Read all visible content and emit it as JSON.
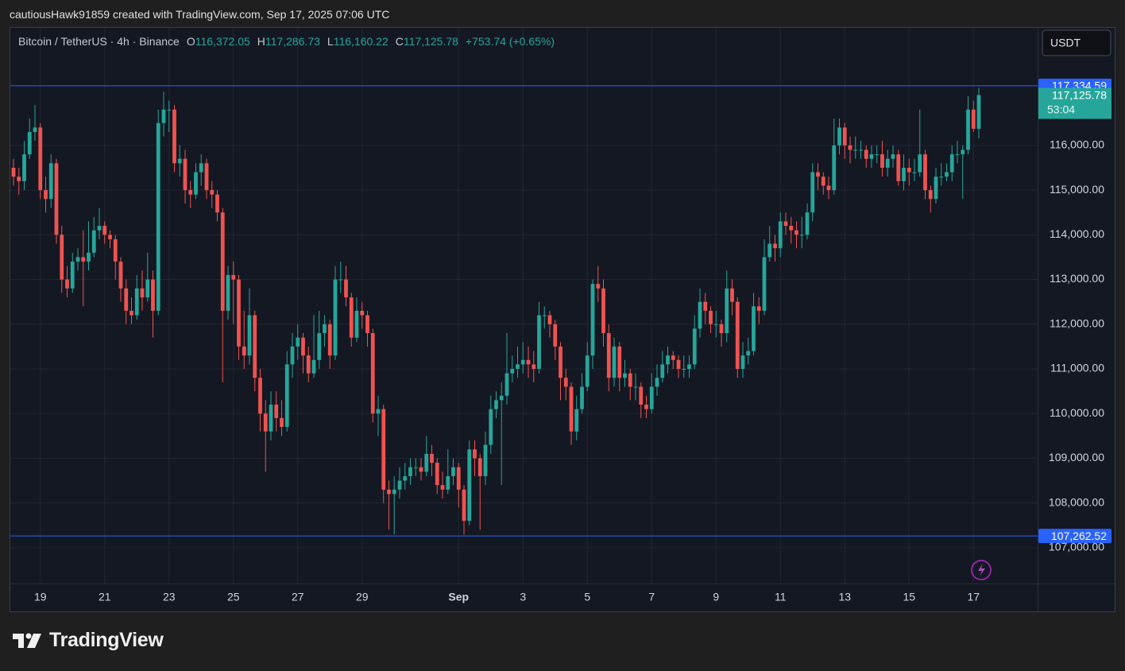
{
  "header": {
    "attribution": "cautiousHawk91859 created with TradingView.com, Sep 17, 2025 07:06 UTC"
  },
  "chart_data": {
    "type": "candlestick",
    "symbol": "Bitcoin / TetherUS · 4h · Binance",
    "ohlc_legend": [
      {
        "label": "O",
        "value": "116,372.05"
      },
      {
        "label": "H",
        "value": "117,286.73"
      },
      {
        "label": "L",
        "value": "116,160.22"
      },
      {
        "label": "C",
        "value": "117,125.78"
      }
    ],
    "change": "+753.74 (+0.65%)",
    "currency": "USDT",
    "up_color": "#26a69a",
    "down_color": "#ef5350",
    "categories": [
      null,
      null,
      null,
      null,
      null,
      "19",
      null,
      null,
      null,
      null,
      null,
      null,
      null,
      null,
      null,
      null,
      null,
      "21",
      null,
      null,
      null,
      null,
      null,
      null,
      null,
      null,
      null,
      null,
      null,
      "23",
      null,
      null,
      null,
      null,
      null,
      null,
      null,
      null,
      null,
      null,
      null,
      "25",
      null,
      null,
      null,
      null,
      null,
      null,
      null,
      null,
      null,
      null,
      null,
      "27",
      null,
      null,
      null,
      null,
      null,
      null,
      null,
      null,
      null,
      null,
      null,
      "29",
      null,
      null,
      null,
      null,
      null,
      null,
      null,
      null,
      null,
      null,
      null,
      null,
      null,
      null,
      null,
      null,
      null,
      "Sep",
      null,
      null,
      null,
      null,
      null,
      null,
      null,
      null,
      null,
      null,
      null,
      "3",
      null,
      null,
      null,
      null,
      null,
      null,
      null,
      null,
      null,
      null,
      null,
      "5",
      null,
      null,
      null,
      null,
      null,
      null,
      null,
      null,
      null,
      null,
      null,
      "7",
      null,
      null,
      null,
      null,
      null,
      null,
      null,
      null,
      null,
      null,
      null,
      "9",
      null,
      null,
      null,
      null,
      null,
      null,
      null,
      null,
      null,
      null,
      null,
      "11",
      null,
      null,
      null,
      null,
      null,
      null,
      null,
      null,
      null,
      null,
      null,
      "13",
      null,
      null,
      null,
      null,
      null,
      null,
      null,
      null,
      null,
      null,
      null,
      "15",
      null,
      null,
      null,
      null,
      null,
      null,
      null,
      null,
      null,
      null,
      null,
      "17",
      null
    ],
    "open": [
      115500,
      115300,
      115200,
      115800,
      116300,
      116400,
      115000,
      114800,
      115600,
      114000,
      113000,
      112800,
      113400,
      113500,
      113400,
      113600,
      114100,
      114200,
      114000,
      113900,
      113400,
      112800,
      112300,
      112200,
      112800,
      112600,
      113000,
      112300,
      116500,
      116800,
      116800,
      115600,
      115700,
      115000,
      114900,
      115400,
      115600,
      115000,
      114900,
      114500,
      112300,
      113100,
      113000,
      111500,
      111300,
      112200,
      110800,
      110000,
      109600,
      110200,
      109900,
      109700,
      111100,
      111500,
      111700,
      111300,
      110900,
      111200,
      111800,
      112000,
      111300,
      113000,
      113000,
      112600,
      111700,
      112300,
      112200,
      111800,
      110000,
      110100,
      108300,
      108200,
      108300,
      108500,
      108600,
      108800,
      108800,
      108700,
      109100,
      108900,
      108400,
      108300,
      108600,
      108800,
      108300,
      107600,
      109200,
      109000,
      108600,
      109300,
      110100,
      110300,
      110400,
      110900,
      111000,
      111100,
      111200,
      111100,
      111000,
      112200,
      112200,
      112000,
      111500,
      110800,
      110600,
      109600,
      110100,
      110600,
      111300,
      112900,
      112800,
      111800,
      110800,
      111500,
      110800,
      110900,
      110600,
      110600,
      110200,
      110100,
      110600,
      110800,
      111100,
      111300,
      111200,
      111000,
      111000,
      111100,
      111900,
      112500,
      112300,
      112000,
      112000,
      111800,
      112800,
      112500,
      111000,
      111300,
      111400,
      112400,
      112300,
      113500,
      113800,
      113700,
      114300,
      114200,
      114100,
      114000,
      114000,
      114500,
      115400,
      115300,
      115100,
      115000,
      116000,
      116400,
      116000,
      115900,
      115900,
      115900,
      115700,
      115800,
      115800,
      115500,
      115700,
      115800,
      115200,
      115500,
      115400,
      115400,
      115800,
      115000,
      114800,
      115300,
      115300,
      115400,
      115800,
      115800,
      115900,
      116800,
      116372.05
    ],
    "high": [
      115700,
      115500,
      116100,
      116600,
      116900,
      116500,
      115300,
      115800,
      115700,
      114200,
      113300,
      113600,
      113700,
      114100,
      114300,
      114400,
      114600,
      114300,
      114100,
      114000,
      113500,
      113000,
      112600,
      113100,
      113200,
      113600,
      113200,
      116800,
      117200,
      117000,
      116900,
      116000,
      115900,
      115200,
      115600,
      115800,
      115700,
      115200,
      115000,
      114600,
      113300,
      113400,
      113100,
      112300,
      112800,
      112300,
      111000,
      110300,
      110500,
      110500,
      110300,
      111400,
      111800,
      112000,
      111800,
      111500,
      112200,
      112300,
      112200,
      112100,
      113300,
      113400,
      113300,
      112700,
      112600,
      112500,
      112300,
      111900,
      110400,
      110200,
      108500,
      108600,
      108800,
      108900,
      109000,
      109000,
      109000,
      109500,
      109300,
      109000,
      108700,
      109200,
      109000,
      108900,
      108400,
      109400,
      109400,
      109100,
      109600,
      110400,
      110500,
      110700,
      111800,
      111300,
      111500,
      111600,
      111500,
      111400,
      112500,
      112400,
      112300,
      112100,
      111600,
      111000,
      110700,
      110400,
      110900,
      111600,
      113000,
      113300,
      113000,
      112000,
      111700,
      111600,
      111200,
      111000,
      110900,
      110700,
      110400,
      110900,
      111100,
      111400,
      111500,
      111400,
      111300,
      111300,
      111300,
      112200,
      112800,
      112700,
      112400,
      112300,
      112100,
      113200,
      113000,
      112600,
      111600,
      111700,
      112700,
      112600,
      113900,
      114200,
      114000,
      114500,
      114500,
      114400,
      114300,
      114400,
      114700,
      115600,
      115600,
      115400,
      115300,
      116600,
      116600,
      116500,
      116200,
      116200,
      116100,
      116000,
      116000,
      116000,
      116100,
      115900,
      116000,
      115900,
      115800,
      115700,
      115700,
      116800,
      115900,
      115100,
      115500,
      115600,
      115600,
      116000,
      116100,
      116000,
      117100,
      117000,
      117286.73
    ],
    "low": [
      115100,
      114900,
      115000,
      115700,
      116100,
      114800,
      114500,
      114600,
      113800,
      112700,
      112600,
      112700,
      113200,
      112400,
      113200,
      113500,
      113900,
      113800,
      113700,
      113000,
      112500,
      112000,
      112000,
      112100,
      112300,
      112500,
      111700,
      112200,
      116200,
      116300,
      115400,
      115300,
      114700,
      114600,
      114800,
      115100,
      114800,
      114600,
      114300,
      110700,
      112100,
      112000,
      111200,
      111000,
      111100,
      110500,
      109600,
      108700,
      109400,
      109600,
      109500,
      109600,
      110800,
      111200,
      110900,
      110700,
      110800,
      111000,
      111500,
      111000,
      111200,
      112700,
      112400,
      111500,
      111600,
      111900,
      111500,
      109800,
      109500,
      108000,
      107400,
      107300,
      108100,
      108300,
      108400,
      108600,
      108500,
      108600,
      108600,
      108200,
      108100,
      108200,
      108400,
      107900,
      107300,
      107500,
      108600,
      107400,
      108400,
      109100,
      109900,
      108400,
      110200,
      110700,
      110800,
      110900,
      110800,
      110700,
      110900,
      111900,
      111700,
      111200,
      110300,
      110300,
      109300,
      109400,
      110000,
      110500,
      111000,
      112500,
      111500,
      110500,
      110600,
      110500,
      110600,
      110300,
      110300,
      109900,
      109900,
      110000,
      110400,
      110700,
      110900,
      111000,
      110800,
      110800,
      110800,
      111000,
      111700,
      112000,
      111800,
      111700,
      111500,
      111600,
      112200,
      110800,
      110800,
      111100,
      111300,
      112000,
      112200,
      113400,
      113400,
      113500,
      114000,
      113800,
      113700,
      113700,
      113900,
      114300,
      115000,
      114900,
      114800,
      114900,
      115800,
      115700,
      115600,
      115700,
      115700,
      115500,
      115500,
      115600,
      115300,
      115300,
      115500,
      115100,
      115000,
      115100,
      115200,
      115300,
      114800,
      114500,
      114700,
      115100,
      115200,
      115200,
      115600,
      114800,
      115800,
      116300,
      116160.22
    ],
    "close": [
      115300,
      115200,
      115800,
      116300,
      116400,
      115000,
      114800,
      115600,
      114000,
      113000,
      112800,
      113400,
      113500,
      113400,
      113600,
      114100,
      114200,
      114000,
      113900,
      113400,
      112800,
      112300,
      112200,
      112800,
      112600,
      113000,
      112300,
      116500,
      116800,
      116800,
      115600,
      115700,
      115000,
      114900,
      115400,
      115600,
      115000,
      114900,
      114500,
      112300,
      113100,
      113000,
      111500,
      111300,
      112200,
      110800,
      110000,
      109600,
      110200,
      109900,
      109700,
      111100,
      111500,
      111700,
      111300,
      110900,
      111200,
      111800,
      112000,
      111300,
      113000,
      113000,
      112600,
      111700,
      112300,
      112200,
      111800,
      110000,
      110100,
      108300,
      108200,
      108300,
      108500,
      108600,
      108800,
      108800,
      108700,
      109100,
      108900,
      108400,
      108300,
      108600,
      108800,
      108300,
      107600,
      109200,
      109000,
      108600,
      109300,
      110100,
      110300,
      110400,
      110900,
      111000,
      111100,
      111200,
      111100,
      111000,
      112200,
      112200,
      112000,
      111500,
      110800,
      110600,
      109600,
      110100,
      110600,
      111300,
      112900,
      112800,
      111800,
      110800,
      111500,
      110800,
      110900,
      110600,
      110600,
      110200,
      110100,
      110600,
      110800,
      111100,
      111300,
      111200,
      111000,
      111000,
      111100,
      111900,
      112500,
      112300,
      112000,
      112000,
      111800,
      112800,
      112500,
      111000,
      111300,
      111400,
      112400,
      112300,
      113500,
      113800,
      113700,
      114300,
      114200,
      114100,
      114000,
      114000,
      114500,
      115400,
      115300,
      115100,
      115000,
      116000,
      116400,
      116000,
      115900,
      115900,
      115900,
      115700,
      115800,
      115800,
      115500,
      115700,
      115800,
      115200,
      115500,
      115400,
      115400,
      115800,
      115000,
      114800,
      115300,
      115300,
      115400,
      115800,
      115800,
      115900,
      116800,
      116372.05,
      117125.78
    ],
    "ylim": [
      106180,
      118630
    ],
    "yticks": [
      {
        "value": 107000,
        "label": "107,000.00"
      },
      {
        "value": 108000,
        "label": "108,000.00"
      },
      {
        "value": 109000,
        "label": "109,000.00"
      },
      {
        "value": 110000,
        "label": "110,000.00"
      },
      {
        "value": 111000,
        "label": "111,000.00"
      },
      {
        "value": 112000,
        "label": "112,000.00"
      },
      {
        "value": 113000,
        "label": "113,000.00"
      },
      {
        "value": 114000,
        "label": "114,000.00"
      },
      {
        "value": 115000,
        "label": "115,000.00"
      },
      {
        "value": 116000,
        "label": "116,000.00"
      }
    ],
    "grid": true,
    "hlines": [
      {
        "value": 117334.59,
        "label": "117,334.59",
        "color": "#2962ff"
      },
      {
        "value": 107262.52,
        "label": "107,262.52",
        "color": "#2962ff"
      }
    ],
    "last_price": {
      "label": "117,125.78",
      "countdown": "53:04"
    }
  },
  "footer": {
    "brand": "TradingView"
  }
}
